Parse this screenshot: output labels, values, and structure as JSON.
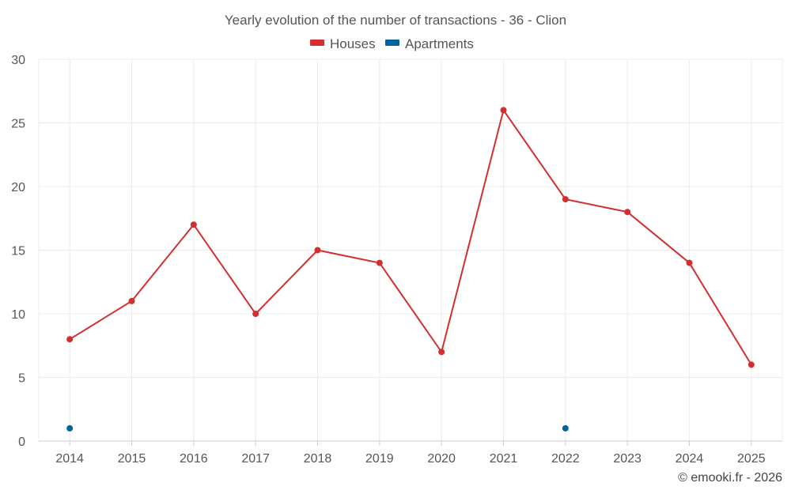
{
  "chart_data": {
    "type": "line",
    "title": "Yearly evolution of the number of transactions - 36 - Clion",
    "categories": [
      "2014",
      "2015",
      "2016",
      "2017",
      "2018",
      "2019",
      "2020",
      "2021",
      "2022",
      "2023",
      "2024",
      "2025"
    ],
    "series": [
      {
        "name": "Houses",
        "color": "#d32f2f",
        "values": [
          8,
          11,
          17,
          10,
          15,
          14,
          7,
          26,
          19,
          18,
          14,
          6
        ]
      },
      {
        "name": "Apartments",
        "color": "#00639a",
        "values": [
          1,
          null,
          null,
          null,
          null,
          null,
          null,
          null,
          1,
          null,
          null,
          null
        ]
      }
    ],
    "ylim": [
      0,
      30
    ],
    "yticks": [
      0,
      5,
      10,
      15,
      20,
      25,
      30
    ],
    "xlabel": "",
    "ylabel": "",
    "grid": true,
    "legend_position": "top-center"
  },
  "credit": "© emooki.fr - 2026"
}
